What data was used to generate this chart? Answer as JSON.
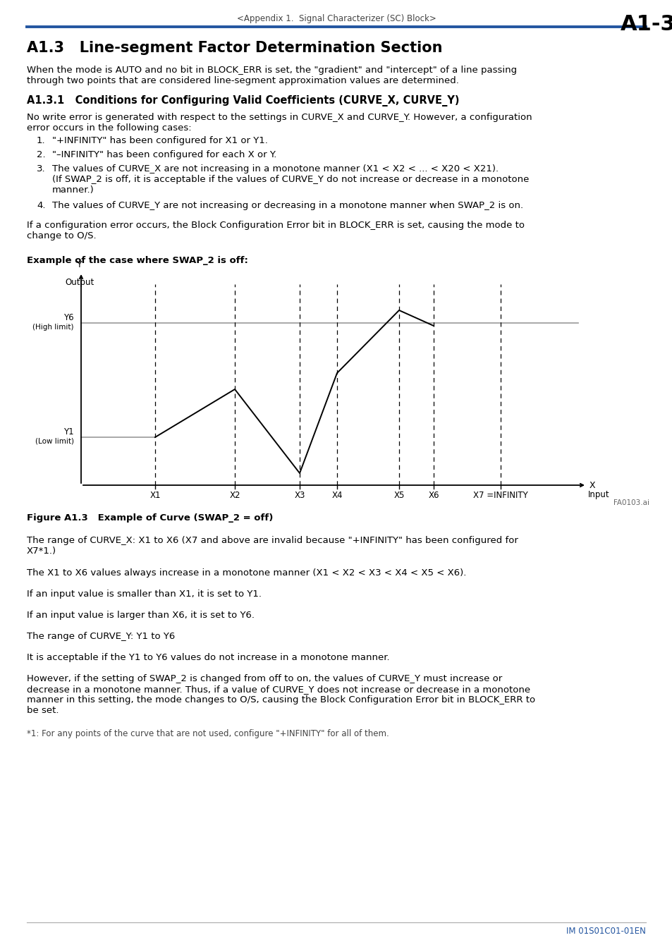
{
  "page_header_center": "<Appendix 1.  Signal Characterizer (SC) Block>",
  "page_header_right": "A1-3",
  "header_line_color": "#2355a0",
  "section_title": "A1.3   Line-segment Factor Determination Section",
  "intro_text": "When the mode is AUTO and no bit in BLOCK_ERR is set, the \"gradient\" and \"intercept\" of a line passing\nthrough two points that are considered line-segment approximation values are determined.",
  "subsection_title": "A1.3.1   Conditions for Configuring Valid Coefficients (CURVE_X, CURVE_Y)",
  "subsection_text": "No write error is generated with respect to the settings in CURVE_X and CURVE_Y. However, a configuration\nerror occurs in the following cases:",
  "list_items": [
    [
      "1.",
      "\"+INFINITY\" has been configured for X1 or Y1."
    ],
    [
      "2.",
      "\"–INFINITY\" has been configured for each X or Y."
    ],
    [
      "3.",
      "The values of CURVE_X are not increasing in a monotone manner (X1 < X2 < ... < X20 < X21).\n(If SWAP_2 is off, it is acceptable if the values of CURVE_Y do not increase or decrease in a monotone\nmanner.)"
    ],
    [
      "4.",
      "The values of CURVE_Y are not increasing or decreasing in a monotone manner when SWAP_2 is on."
    ]
  ],
  "config_error_text": "If a configuration error occurs, the Block Configuration Error bit in BLOCK_ERR is set, causing the mode to\nchange to O/S.",
  "example_title": "Example of the case where SWAP_2 is off:",
  "figure_caption": "Figure A1.3   Example of Curve (SWAP_2 = off)",
  "figure_ref": "FA0103.ai",
  "body_texts": [
    "The range of CURVE_X: X1 to X6 (X7 and above are invalid because \"+INFINITY\" has been configured for\nX7*1.)",
    "The X1 to X6 values always increase in a monotone manner (X1 < X2 < X3 < X4 < X5 < X6).",
    "If an input value is smaller than X1, it is set to Y1.",
    "If an input value is larger than X6, it is set to Y6.",
    "The range of CURVE_Y: Y1 to Y6",
    "It is acceptable if the Y1 to Y6 values do not increase in a monotone manner.",
    "However, if the setting of SWAP_2 is changed from off to on, the values of CURVE_Y must increase or\ndecrease in a monotone manner. Thus, if a value of CURVE_Y does not increase or decrease in a monotone\nmanner in this setting, the mode changes to O/S, causing the Block Configuration Error bit in BLOCK_ERR to\nbe set.",
    "*1: For any points of the curve that are not used, configure \"+INFINITY\" for all of them."
  ],
  "footer_text": "IM 01S01C01-01EN",
  "footer_color": "#2355a0",
  "background_color": "#ffffff"
}
